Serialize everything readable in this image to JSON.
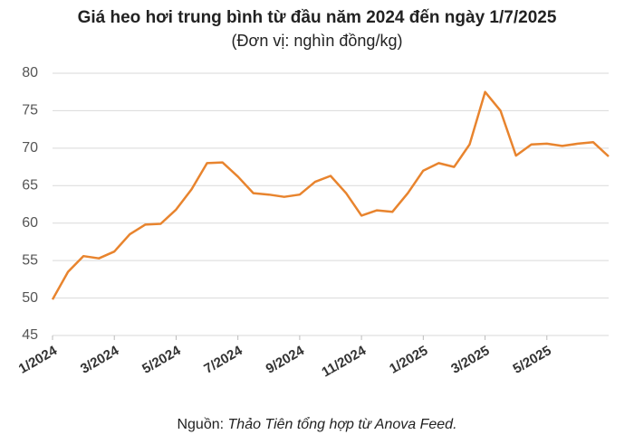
{
  "chart_data": {
    "type": "line",
    "title": "Giá heo hơi trung bình từ đầu năm 2024 đến ngày 1/7/2025",
    "subtitle": "(Đơn vị: nghìn đồng/kg)",
    "source_label": "Nguồn:",
    "source_text": "Thảo Tiên tổng hợp từ Anova Feed.",
    "categories": [
      "1/2024",
      null,
      null,
      null,
      "3/2024",
      null,
      null,
      null,
      "5/2024",
      null,
      null,
      null,
      "7/2024",
      null,
      null,
      null,
      "9/2024",
      null,
      null,
      null,
      "11/2024",
      null,
      null,
      null,
      "1/2025",
      null,
      null,
      null,
      "3/2025",
      null,
      null,
      null,
      "5/2025",
      null,
      null,
      null,
      null
    ],
    "series": [
      {
        "color": "#e8842e",
        "values": [
          49.8,
          53.5,
          55.6,
          55.3,
          56.2,
          58.5,
          59.8,
          59.9,
          61.8,
          64.5,
          68.0,
          68.1,
          66.2,
          64.0,
          63.8,
          63.5,
          63.8,
          65.5,
          66.3,
          64.0,
          61.0,
          61.7,
          61.5,
          64.0,
          67.0,
          68.0,
          67.5,
          70.5,
          77.5,
          75.0,
          69.0,
          70.5,
          70.6,
          70.3,
          70.6,
          70.8,
          68.9
        ]
      }
    ],
    "ylim": [
      45,
      80
    ],
    "yticks": [
      45,
      50,
      55,
      60,
      65,
      70,
      75,
      80
    ],
    "grid": true
  }
}
